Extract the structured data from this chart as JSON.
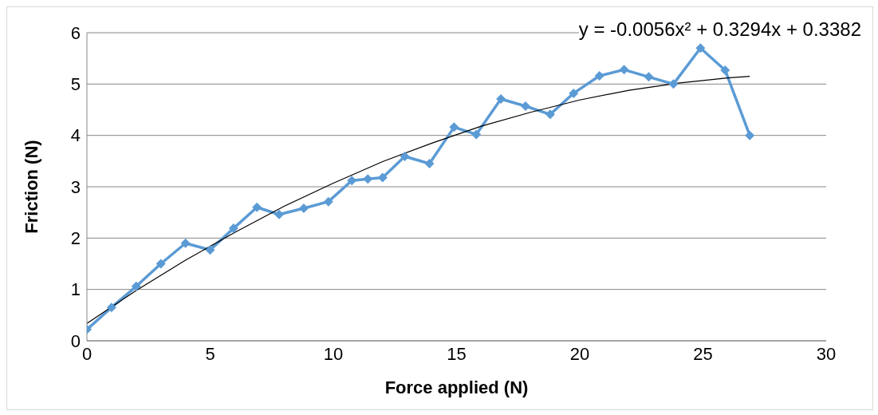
{
  "chart_data": {
    "type": "line",
    "xlabel": "Force applied (N)",
    "ylabel": "Friction (N)",
    "xlim": [
      0,
      30
    ],
    "xticks": [
      0,
      5,
      10,
      15,
      20,
      25,
      30
    ],
    "ylim": [
      0,
      6
    ],
    "yticks": [
      0,
      1,
      2,
      3,
      4,
      5,
      6
    ],
    "grid": "y",
    "line_style": "solid",
    "annotations": [
      "y = -0.0056x² + 0.3294x + 0.3382"
    ],
    "series": [
      {
        "marker": "diamond",
        "color": "#5b9bd5",
        "x": [
          0,
          1,
          2,
          3,
          4,
          5,
          5.95,
          6.9,
          7.8,
          8.8,
          9.8,
          10.75,
          11.4,
          12,
          12.9,
          13.9,
          14.9,
          15.8,
          16.8,
          17.8,
          18.8,
          19.75,
          20.8,
          21.8,
          22.8,
          23.8,
          24.9,
          25.9,
          26.9
        ],
        "values": [
          0.22,
          0.65,
          1.06,
          1.5,
          1.9,
          1.77,
          2.19,
          2.6,
          2.46,
          2.58,
          2.71,
          3.12,
          3.15,
          3.18,
          3.59,
          3.45,
          4.16,
          4.02,
          4.71,
          4.57,
          4.41,
          4.82,
          5.16,
          5.28,
          5.14,
          5.0,
          5.7,
          5.27,
          4.0
        ]
      },
      {
        "marker": "none",
        "color": "#000000",
        "x": [
          0,
          2,
          4,
          6,
          8,
          10,
          12,
          14,
          16,
          18,
          20,
          22,
          24,
          26,
          26.9
        ],
        "values": [
          0.34,
          0.98,
          1.57,
          2.11,
          2.62,
          3.07,
          3.49,
          3.85,
          4.18,
          4.45,
          4.69,
          4.88,
          5.02,
          5.12,
          5.15
        ]
      }
    ]
  }
}
